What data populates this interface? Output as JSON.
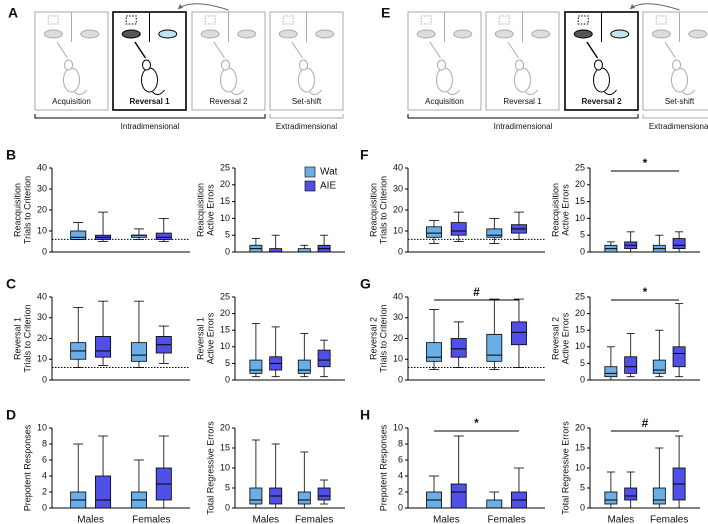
{
  "schematics": [
    {
      "letter": "A",
      "stages": [
        "Acquisition",
        "Reversal 1",
        "Reversal 2",
        "Set-shift"
      ],
      "active": 1,
      "groups": [
        "Intradimensional",
        "Extradimensional"
      ]
    },
    {
      "letter": "E",
      "stages": [
        "Acquisition",
        "Reversal 1",
        "Reversal 2",
        "Set-shift"
      ],
      "active": 2,
      "groups": [
        "Intradimensional",
        "Extradimensional"
      ]
    }
  ],
  "chart_data": [
    {
      "type": "box",
      "letter": "B",
      "ylabel": [
        "Reacquisition",
        "Trials to Criterion"
      ],
      "categories": [
        null,
        null
      ],
      "ylim": [
        0,
        40
      ],
      "yticks": [
        0,
        10,
        20,
        30,
        40
      ],
      "hline": 6,
      "series": [
        {
          "name": "Wat",
          "color": "#6aaee8",
          "boxes": [
            {
              "min": 6,
              "q1": 6,
              "median": 7,
              "q3": 10,
              "max": 14
            },
            {
              "min": 6,
              "q1": 7,
              "median": 8,
              "q3": 8,
              "max": 11
            }
          ]
        },
        {
          "name": "AIE",
          "color": "#5050e6",
          "boxes": [
            {
              "min": 5,
              "q1": 6,
              "median": 7,
              "q3": 8,
              "max": 19
            },
            {
              "min": 5,
              "q1": 6,
              "median": 7,
              "q3": 9,
              "max": 16
            }
          ]
        }
      ]
    },
    {
      "type": "box",
      "ylabel": [
        "Reacquisition",
        "Active Errors"
      ],
      "categories": [
        null,
        null
      ],
      "ylim": [
        0,
        25
      ],
      "yticks": [
        0,
        5,
        10,
        15,
        20,
        25
      ],
      "legend": true,
      "series": [
        {
          "name": "Wat",
          "color": "#6aaee8",
          "boxes": [
            {
              "min": 0,
              "q1": 0,
              "median": 1,
              "q3": 2,
              "max": 4
            },
            {
              "min": 0,
              "q1": 0,
              "median": 0,
              "q3": 1,
              "max": 2
            }
          ]
        },
        {
          "name": "AIE",
          "color": "#5050e6",
          "boxes": [
            {
              "min": 0,
              "q1": 0,
              "median": 0,
              "q3": 1,
              "max": 5
            },
            {
              "min": 0,
              "q1": 0,
              "median": 1,
              "q3": 2,
              "max": 5
            }
          ]
        }
      ]
    },
    {
      "type": "box",
      "letter": "C",
      "ylabel": [
        "Reversal 1",
        "Trials to Criterion"
      ],
      "categories": [
        null,
        null
      ],
      "ylim": [
        0,
        40
      ],
      "yticks": [
        0,
        10,
        20,
        30,
        40
      ],
      "hline": 6,
      "series": [
        {
          "name": "Wat",
          "color": "#6aaee8",
          "boxes": [
            {
              "min": 6,
              "q1": 10,
              "median": 14,
              "q3": 18,
              "max": 35
            },
            {
              "min": 6,
              "q1": 9,
              "median": 12,
              "q3": 18,
              "max": 38
            }
          ]
        },
        {
          "name": "AIE",
          "color": "#5050e6",
          "boxes": [
            {
              "min": 7,
              "q1": 11,
              "median": 14,
              "q3": 21,
              "max": 38
            },
            {
              "min": 8,
              "q1": 13,
              "median": 17,
              "q3": 21,
              "max": 26
            }
          ]
        }
      ]
    },
    {
      "type": "box",
      "ylabel": [
        "Reversal 1",
        "Active Errors"
      ],
      "categories": [
        null,
        null
      ],
      "ylim": [
        0,
        25
      ],
      "yticks": [
        0,
        5,
        10,
        15,
        20,
        25
      ],
      "series": [
        {
          "name": "Wat",
          "color": "#6aaee8",
          "boxes": [
            {
              "min": 1,
              "q1": 2,
              "median": 3,
              "q3": 6,
              "max": 17
            },
            {
              "min": 1,
              "q1": 2,
              "median": 3,
              "q3": 6,
              "max": 14
            }
          ]
        },
        {
          "name": "AIE",
          "color": "#5050e6",
          "boxes": [
            {
              "min": 1,
              "q1": 3,
              "median": 5,
              "q3": 7,
              "max": 16
            },
            {
              "min": 1,
              "q1": 4,
              "median": 6,
              "q3": 9,
              "max": 12
            }
          ]
        }
      ]
    },
    {
      "type": "box",
      "letter": "D",
      "ylabel": [
        "Prepotent Responses"
      ],
      "categories": [
        "Males",
        "Females"
      ],
      "ylim": [
        0,
        10
      ],
      "yticks": [
        0,
        2,
        4,
        6,
        8,
        10
      ],
      "series": [
        {
          "name": "Wat",
          "color": "#6aaee8",
          "boxes": [
            {
              "min": 0,
              "q1": 0,
              "median": 1,
              "q3": 2,
              "max": 8
            },
            {
              "min": 0,
              "q1": 0,
              "median": 1,
              "q3": 2,
              "max": 6
            }
          ]
        },
        {
          "name": "AIE",
          "color": "#5050e6",
          "boxes": [
            {
              "min": 0,
              "q1": 0,
              "median": 1,
              "q3": 4,
              "max": 9
            },
            {
              "min": 0,
              "q1": 1,
              "median": 3,
              "q3": 5,
              "max": 9
            }
          ]
        }
      ]
    },
    {
      "type": "box",
      "ylabel": [
        "Total Regressive Errors"
      ],
      "categories": [
        "Males",
        "Females"
      ],
      "ylim": [
        0,
        20
      ],
      "yticks": [
        0,
        5,
        10,
        15,
        20
      ],
      "series": [
        {
          "name": "Wat",
          "color": "#6aaee8",
          "boxes": [
            {
              "min": 0,
              "q1": 1,
              "median": 2,
              "q3": 5,
              "max": 17
            },
            {
              "min": 0,
              "q1": 1,
              "median": 2,
              "q3": 4,
              "max": 14
            }
          ]
        },
        {
          "name": "AIE",
          "color": "#5050e6",
          "boxes": [
            {
              "min": 0,
              "q1": 1,
              "median": 3,
              "q3": 5,
              "max": 16
            },
            {
              "min": 1,
              "q1": 2,
              "median": 3,
              "q3": 5,
              "max": 7
            }
          ]
        }
      ]
    },
    {
      "type": "box",
      "letter": "F",
      "ylabel": [
        "Reacquisition",
        "Trials to Criterion"
      ],
      "categories": [
        null,
        null
      ],
      "ylim": [
        0,
        40
      ],
      "yticks": [
        0,
        10,
        20,
        30,
        40
      ],
      "hline": 6,
      "series": [
        {
          "name": "Wat",
          "color": "#6aaee8",
          "boxes": [
            {
              "min": 4,
              "q1": 7,
              "median": 9,
              "q3": 12,
              "max": 15
            },
            {
              "min": 4,
              "q1": 7,
              "median": 8,
              "q3": 11,
              "max": 16
            }
          ]
        },
        {
          "name": "AIE",
          "color": "#5050e6",
          "boxes": [
            {
              "min": 5,
              "q1": 8,
              "median": 10,
              "q3": 14,
              "max": 19
            },
            {
              "min": 6,
              "q1": 9,
              "median": 11,
              "q3": 13,
              "max": 19
            }
          ]
        }
      ]
    },
    {
      "type": "box",
      "ylabel": [
        "Reacquisition",
        "Active Errors"
      ],
      "categories": [
        null,
        null
      ],
      "ylim": [
        0,
        25
      ],
      "yticks": [
        0,
        5,
        10,
        15,
        20,
        25
      ],
      "annotation": "*",
      "series": [
        {
          "name": "Wat",
          "color": "#6aaee8",
          "boxes": [
            {
              "min": 0,
              "q1": 0,
              "median": 1,
              "q3": 2,
              "max": 3
            },
            {
              "min": 0,
              "q1": 0,
              "median": 1,
              "q3": 2,
              "max": 5
            }
          ]
        },
        {
          "name": "AIE",
          "color": "#5050e6",
          "boxes": [
            {
              "min": 0,
              "q1": 1,
              "median": 2,
              "q3": 3,
              "max": 6
            },
            {
              "min": 0,
              "q1": 1,
              "median": 2,
              "q3": 4,
              "max": 6
            }
          ]
        }
      ]
    },
    {
      "type": "box",
      "letter": "G",
      "ylabel": [
        "Reversal 2",
        "Trials to Criterion"
      ],
      "categories": [
        null,
        null
      ],
      "ylim": [
        0,
        40
      ],
      "yticks": [
        0,
        10,
        20,
        30,
        40
      ],
      "hline": 6,
      "annotation": "#",
      "series": [
        {
          "name": "Wat",
          "color": "#6aaee8",
          "boxes": [
            {
              "min": 5,
              "q1": 9,
              "median": 11,
              "q3": 18,
              "max": 34
            },
            {
              "min": 5,
              "q1": 9,
              "median": 12,
              "q3": 22,
              "max": 39
            }
          ]
        },
        {
          "name": "AIE",
          "color": "#5050e6",
          "boxes": [
            {
              "min": 6,
              "q1": 11,
              "median": 15,
              "q3": 20,
              "max": 28
            },
            {
              "min": 6,
              "q1": 17,
              "median": 23,
              "q3": 28,
              "max": 39
            }
          ]
        }
      ]
    },
    {
      "type": "box",
      "ylabel": [
        "Reversal 2",
        "Active Errors"
      ],
      "categories": [
        null,
        null
      ],
      "ylim": [
        0,
        25
      ],
      "yticks": [
        0,
        5,
        10,
        15,
        20,
        25
      ],
      "annotation": "*",
      "series": [
        {
          "name": "Wat",
          "color": "#6aaee8",
          "boxes": [
            {
              "min": 0,
              "q1": 1,
              "median": 2,
              "q3": 4,
              "max": 10
            },
            {
              "min": 1,
              "q1": 2,
              "median": 3,
              "q3": 6,
              "max": 15
            }
          ]
        },
        {
          "name": "AIE",
          "color": "#5050e6",
          "boxes": [
            {
              "min": 1,
              "q1": 2,
              "median": 4,
              "q3": 7,
              "max": 14
            },
            {
              "min": 1,
              "q1": 4,
              "median": 8,
              "q3": 10,
              "max": 23
            }
          ]
        }
      ]
    },
    {
      "type": "box",
      "letter": "H",
      "ylabel": [
        "Prepotent Responses"
      ],
      "categories": [
        "Males",
        "Females"
      ],
      "ylim": [
        0,
        10
      ],
      "yticks": [
        0,
        2,
        4,
        6,
        8,
        10
      ],
      "annotation": "*",
      "series": [
        {
          "name": "Wat",
          "color": "#6aaee8",
          "boxes": [
            {
              "min": 0,
              "q1": 0,
              "median": 1,
              "q3": 2,
              "max": 4
            },
            {
              "min": 0,
              "q1": 0,
              "median": 0,
              "q3": 1,
              "max": 2
            }
          ]
        },
        {
          "name": "AIE",
          "color": "#5050e6",
          "boxes": [
            {
              "min": 0,
              "q1": 0,
              "median": 2,
              "q3": 3,
              "max": 9
            },
            {
              "min": 0,
              "q1": 0,
              "median": 1,
              "q3": 2,
              "max": 5
            }
          ]
        }
      ]
    },
    {
      "type": "box",
      "ylabel": [
        "Total Regressive Errors"
      ],
      "categories": [
        "Males",
        "Females"
      ],
      "ylim": [
        0,
        20
      ],
      "yticks": [
        0,
        5,
        10,
        15,
        20
      ],
      "annotation": "#",
      "series": [
        {
          "name": "Wat",
          "color": "#6aaee8",
          "boxes": [
            {
              "min": 0,
              "q1": 1,
              "median": 2,
              "q3": 4,
              "max": 9
            },
            {
              "min": 0,
              "q1": 1,
              "median": 2,
              "q3": 5,
              "max": 15
            }
          ]
        },
        {
          "name": "AIE",
          "color": "#5050e6",
          "boxes": [
            {
              "min": 0,
              "q1": 2,
              "median": 3,
              "q3": 5,
              "max": 9
            },
            {
              "min": 0,
              "q1": 2,
              "median": 6,
              "q3": 10,
              "max": 18
            }
          ]
        }
      ]
    }
  ]
}
